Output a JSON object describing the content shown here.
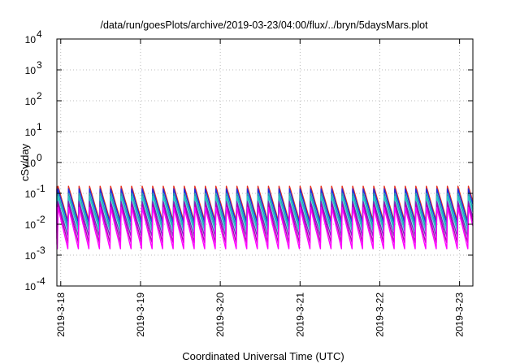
{
  "chart_data": {
    "type": "line",
    "title": "/data/run/goesPlots/archive/2019-03-23/04:00/flux/../bryn/5daysMars.plot",
    "xlabel": "Coordinated Universal Time (UTC)",
    "ylabel": "cSv/day",
    "yscale": "log",
    "ylim": [
      0.0001,
      10000
    ],
    "yticks": [
      {
        "value": 0.0001,
        "base": "10",
        "exp": "-4"
      },
      {
        "value": 0.001,
        "base": "10",
        "exp": "-3"
      },
      {
        "value": 0.01,
        "base": "10",
        "exp": "-2"
      },
      {
        "value": 0.1,
        "base": "10",
        "exp": "-1"
      },
      {
        "value": 1,
        "base": "10",
        "exp": "0"
      },
      {
        "value": 10,
        "base": "10",
        "exp": "1"
      },
      {
        "value": 100,
        "base": "10",
        "exp": "2"
      },
      {
        "value": 1000,
        "base": "10",
        "exp": "3"
      },
      {
        "value": 10000,
        "base": "10",
        "exp": "4"
      }
    ],
    "xlim": [
      "2019-03-17T22:50",
      "2019-03-23T04:00"
    ],
    "xticks": [
      {
        "date": "2019-03-18T00:00",
        "label": "2019-3-18"
      },
      {
        "date": "2019-03-19T00:00",
        "label": "2019-3-19"
      },
      {
        "date": "2019-03-20T00:00",
        "label": "2019-3-20"
      },
      {
        "date": "2019-03-21T00:00",
        "label": "2019-3-21"
      },
      {
        "date": "2019-03-22T00:00",
        "label": "2019-3-22"
      },
      {
        "date": "2019-03-23T00:00",
        "label": "2019-3-23"
      }
    ],
    "grid": true,
    "legend": "none",
    "pattern": "sawtooth peaks every ~3.2 h rising to a sharp maximum then decaying",
    "peak_times": [
      "2019-03-17T23:10",
      "2019-03-18T02:20",
      "2019-03-18T05:30",
      "2019-03-18T08:40",
      "2019-03-18T11:50",
      "2019-03-18T15:00",
      "2019-03-18T18:10",
      "2019-03-18T21:20",
      "2019-03-19T00:30",
      "2019-03-19T03:40",
      "2019-03-19T06:50",
      "2019-03-19T10:00",
      "2019-03-19T13:10",
      "2019-03-19T16:20",
      "2019-03-19T19:30",
      "2019-03-19T22:40",
      "2019-03-20T01:50",
      "2019-03-20T05:00",
      "2019-03-20T08:10",
      "2019-03-20T11:20",
      "2019-03-20T14:30",
      "2019-03-20T17:40",
      "2019-03-20T20:50",
      "2019-03-21T00:00",
      "2019-03-21T03:10",
      "2019-03-21T06:20",
      "2019-03-21T09:30",
      "2019-03-21T12:40",
      "2019-03-21T15:50",
      "2019-03-21T19:00",
      "2019-03-21T22:10",
      "2019-03-22T01:20",
      "2019-03-22T04:30",
      "2019-03-22T07:40",
      "2019-03-22T10:50",
      "2019-03-22T14:00",
      "2019-03-22T17:10",
      "2019-03-22T20:20",
      "2019-03-22T23:30",
      "2019-03-23T02:40"
    ],
    "series": [
      {
        "color": "#e8321e",
        "peak": 0.17,
        "trough": 0.013
      },
      {
        "color": "#1e2ee0",
        "peak": 0.14,
        "trough": 0.011
      },
      {
        "color": "#1fa0b0",
        "peak": 0.1,
        "trough": 0.008
      },
      {
        "color": "#28c8c8",
        "peak": 0.08,
        "trough": 0.006
      },
      {
        "color": "#7030c0",
        "peak": 0.055,
        "trough": 0.004
      },
      {
        "color": "#b000b0",
        "peak": 0.045,
        "trough": 0.0025
      },
      {
        "color": "#ff00ff",
        "peak": 0.035,
        "trough": 0.0016
      }
    ]
  }
}
